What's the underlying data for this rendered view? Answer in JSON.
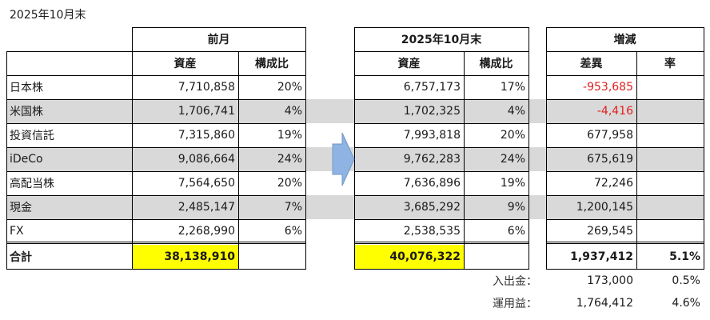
{
  "title": "2025年10月末",
  "headers": {
    "prev_group": "前月",
    "curr_group": "2025年10月末",
    "change_group": "増減",
    "asset": "資産",
    "ratio": "構成比",
    "diff": "差異",
    "rate": "率"
  },
  "rows": [
    {
      "label": "日本株",
      "prev_asset": "7,710,858",
      "prev_ratio": "20%",
      "curr_asset": "6,757,173",
      "curr_ratio": "17%",
      "diff": "-953,685",
      "rate": "",
      "negative": true,
      "shaded": false
    },
    {
      "label": "米国株",
      "prev_asset": "1,706,741",
      "prev_ratio": "4%",
      "curr_asset": "1,702,325",
      "curr_ratio": "4%",
      "diff": "-4,416",
      "rate": "",
      "negative": true,
      "shaded": true
    },
    {
      "label": "投資信託",
      "prev_asset": "7,315,860",
      "prev_ratio": "19%",
      "curr_asset": "7,993,818",
      "curr_ratio": "20%",
      "diff": "677,958",
      "rate": "",
      "negative": false,
      "shaded": false
    },
    {
      "label": "iDeCo",
      "prev_asset": "9,086,664",
      "prev_ratio": "24%",
      "curr_asset": "9,762,283",
      "curr_ratio": "24%",
      "diff": "675,619",
      "rate": "",
      "negative": false,
      "shaded": true
    },
    {
      "label": "高配当株",
      "prev_asset": "7,564,650",
      "prev_ratio": "20%",
      "curr_asset": "7,636,896",
      "curr_ratio": "19%",
      "diff": "72,246",
      "rate": "",
      "negative": false,
      "shaded": false
    },
    {
      "label": "現金",
      "prev_asset": "2,485,147",
      "prev_ratio": "7%",
      "curr_asset": "3,685,292",
      "curr_ratio": "9%",
      "diff": "1,200,145",
      "rate": "",
      "negative": false,
      "shaded": true
    },
    {
      "label": "FX",
      "prev_asset": "2,268,990",
      "prev_ratio": "6%",
      "curr_asset": "2,538,535",
      "curr_ratio": "6%",
      "diff": "269,545",
      "rate": "",
      "negative": false,
      "shaded": false
    }
  ],
  "total": {
    "label": "合計",
    "prev_asset": "38,138,910",
    "curr_asset": "40,076,322",
    "diff": "1,937,412",
    "rate": "5.1%"
  },
  "summary": [
    {
      "label": "入出金：",
      "value": "173,000",
      "rate": "0.5%"
    },
    {
      "label": "運用益：",
      "value": "1,764,412",
      "rate": "4.6%"
    }
  ],
  "colors": {
    "negative": "#e02020",
    "highlight": "#ffff00",
    "shade": "#d9d9d9",
    "arrow": "#8fb4e3"
  },
  "icons": {
    "arrow": "right-arrow-icon"
  }
}
